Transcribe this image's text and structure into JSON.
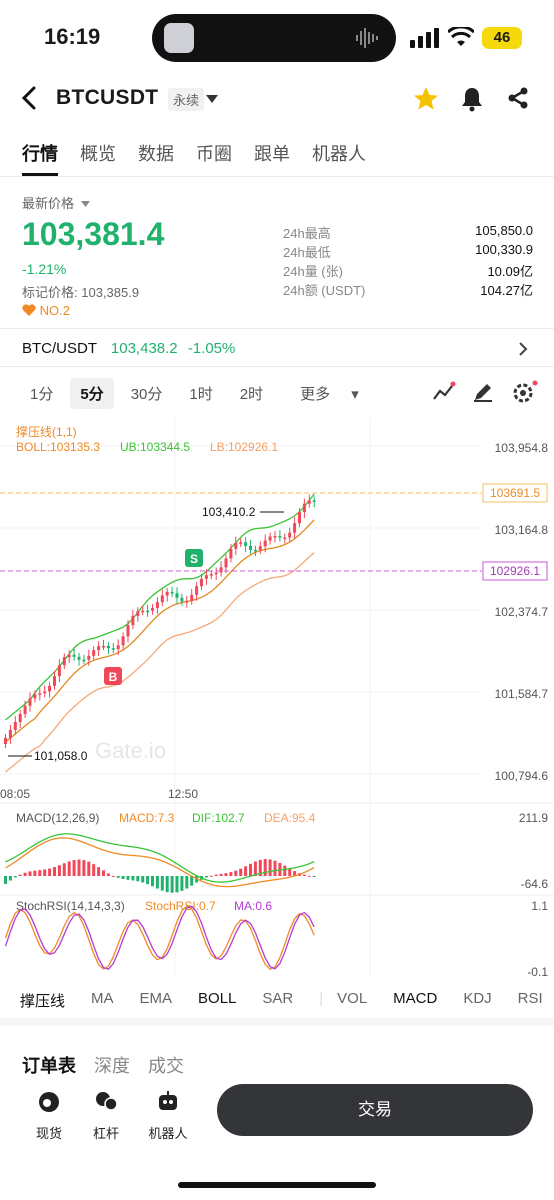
{
  "status_bar": {
    "time": "16:19",
    "battery": "46"
  },
  "header": {
    "symbol": "BTCUSDT",
    "contract_type": "永续",
    "icons": [
      "back-icon",
      "chevron-down-icon",
      "star-icon",
      "bell-icon",
      "share-icon"
    ]
  },
  "tabs": [
    "行情",
    "概览",
    "数据",
    "币圈",
    "跟单",
    "机器人"
  ],
  "price": {
    "label": "最新价格",
    "last": "103,381.4",
    "change_pct": "-1.21%",
    "mark_label": "标记价格:",
    "mark_value": "103,385.9",
    "rank": "NO.2"
  },
  "stats": [
    {
      "label": "24h最高",
      "value": "105,850.0"
    },
    {
      "label": "24h最低",
      "value": "100,330.9"
    },
    {
      "label": "24h量 (张)",
      "value": "10.09亿"
    },
    {
      "label": "24h额 (USDT)",
      "value": "104.27亿"
    }
  ],
  "spot": {
    "pair": "BTC/USDT",
    "price": "103,438.2",
    "change": "-1.05%"
  },
  "timeframes": [
    "1分",
    "5分",
    "30分",
    "1时",
    "2时",
    "更多"
  ],
  "chart": {
    "support_label": "撑压线(1,1)",
    "boll": {
      "label": "BOLL:103135.3",
      "ub": "UB:103344.5",
      "lb": "LB:102926.1"
    },
    "y_axis": [
      "103,954.8",
      "103,164.8",
      "102,374.7",
      "101,584.7",
      "100,794.6"
    ],
    "price_line_upper": "103691.5",
    "price_line_lower": "102926.1",
    "high_marker": "103,410.2",
    "low_marker": "101,058.0",
    "x_axis": [
      "08:05",
      "12:50"
    ],
    "watermark": "Gate.io",
    "signal_s": "S",
    "signal_b": "B",
    "macd": {
      "label": "MACD(12,26,9)",
      "macd": "MACD:7.3",
      "dif": "DIF:102.7",
      "dea": "DEA:95.4",
      "y_top": "211.9",
      "y_bottom": "-64.6"
    },
    "stoch": {
      "label": "StochRSI(14,14,3,3)",
      "stoch": "StochRSI:0.7",
      "ma": "MA:0.6",
      "y_top": "1.1",
      "y_bottom": "-0.1"
    }
  },
  "indicator_tabs": [
    "撑压线",
    "MA",
    "EMA",
    "BOLL",
    "SAR",
    "VOL",
    "MACD",
    "KDJ",
    "RSI"
  ],
  "book_tabs": [
    "订单表",
    "深度",
    "成交"
  ],
  "bottom_actions": [
    "现货",
    "杠杆",
    "机器人"
  ],
  "trade_button": "交易",
  "colors": {
    "up": "#20b26c",
    "down": "#f04858",
    "accent": "#f5c200"
  }
}
